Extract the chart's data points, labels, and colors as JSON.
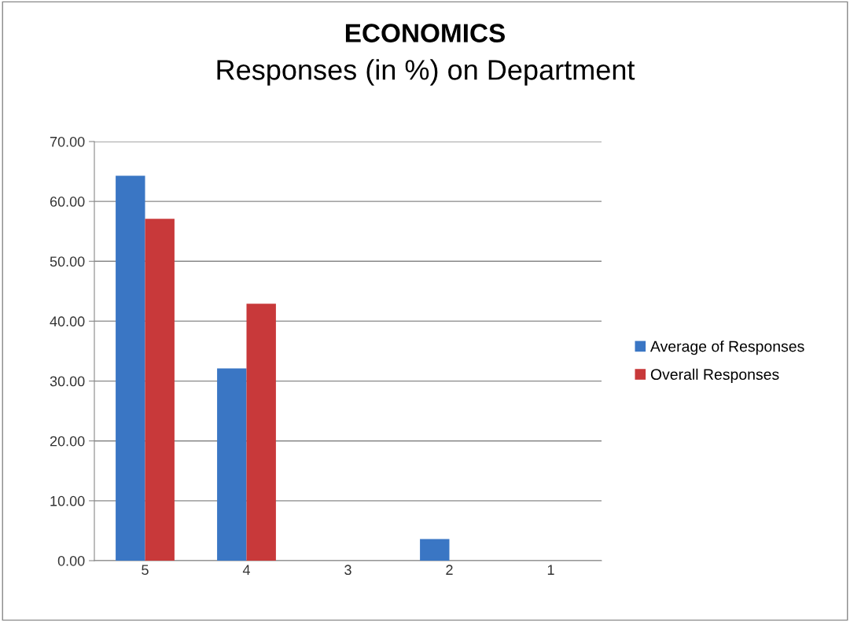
{
  "chart_data": {
    "type": "bar",
    "title": "ECONOMICS",
    "subtitle": "Responses (in %) on Department",
    "categories": [
      "5",
      "4",
      "3",
      "2",
      "1"
    ],
    "series": [
      {
        "name": "Average of Responses",
        "color": "#3a76c4",
        "values": [
          64.3,
          32.1,
          0,
          3.6,
          0
        ]
      },
      {
        "name": "Overall Responses",
        "color": "#c8393a",
        "values": [
          57.1,
          42.9,
          0,
          0,
          0
        ]
      }
    ],
    "ylim": [
      0,
      70
    ],
    "yticks": [
      {
        "value": 0,
        "label": "0.00"
      },
      {
        "value": 10,
        "label": "10.00"
      },
      {
        "value": 20,
        "label": "20.00"
      },
      {
        "value": 30,
        "label": "30.00"
      },
      {
        "value": 40,
        "label": "40.00"
      },
      {
        "value": 50,
        "label": "50.00"
      },
      {
        "value": 60,
        "label": "60.00"
      },
      {
        "value": 70,
        "label": "70.00"
      }
    ],
    "grid": "y",
    "legend": "right"
  }
}
